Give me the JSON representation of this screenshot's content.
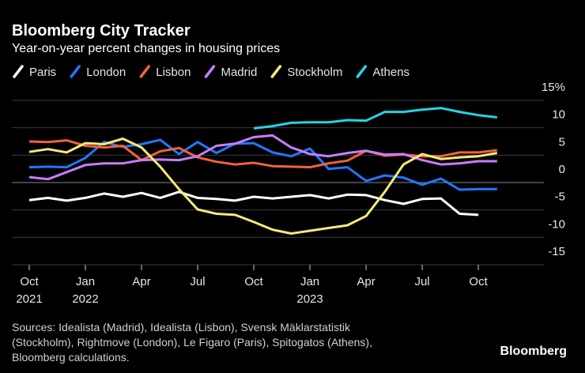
{
  "chart_data": {
    "type": "line",
    "title": "Bloomberg City Tracker",
    "subtitle": "Year-on-year percent changes in housing prices",
    "x": [
      "2021-10",
      "2021-11",
      "2021-12",
      "2022-01",
      "2022-02",
      "2022-03",
      "2022-04",
      "2022-05",
      "2022-06",
      "2022-07",
      "2022-08",
      "2022-09",
      "2022-10",
      "2022-11",
      "2022-12",
      "2023-01",
      "2023-02",
      "2023-03",
      "2023-04",
      "2023-05",
      "2023-06",
      "2023-07",
      "2023-08",
      "2023-09",
      "2023-10",
      "2023-11"
    ],
    "xticks": [
      {
        "value": "2021-10",
        "label": [
          "Oct",
          "2021"
        ]
      },
      {
        "value": "2022-01",
        "label": [
          "Jan",
          "2022"
        ]
      },
      {
        "value": "2022-04",
        "label": [
          "Apr"
        ]
      },
      {
        "value": "2022-07",
        "label": [
          "Jul"
        ]
      },
      {
        "value": "2022-10",
        "label": [
          "Oct"
        ]
      },
      {
        "value": "2023-01",
        "label": [
          "Jan",
          "2023"
        ]
      },
      {
        "value": "2023-04",
        "label": [
          "Apr"
        ]
      },
      {
        "value": "2023-07",
        "label": [
          "Jul"
        ]
      },
      {
        "value": "2023-10",
        "label": [
          "Oct"
        ]
      }
    ],
    "ylim": [
      -15,
      15
    ],
    "yticks": [
      -15,
      -10,
      -5,
      0,
      5,
      10,
      {
        "value": 15,
        "label": "15%"
      }
    ],
    "grid": true,
    "series": [
      {
        "name": "Paris",
        "color": "#ffffff",
        "values": [
          -3.2,
          -2.8,
          -3.3,
          -2.8,
          -2.0,
          -2.6,
          -1.9,
          -2.8,
          -1.7,
          -2.8,
          -3.0,
          -3.3,
          -2.6,
          -2.9,
          -2.6,
          -2.3,
          -2.9,
          -2.2,
          -2.3,
          -3.2,
          -3.9,
          -3.0,
          -2.9,
          -5.7,
          -5.9,
          null
        ]
      },
      {
        "name": "London",
        "color": "#1f78ff",
        "values": [
          2.8,
          2.9,
          2.8,
          4.5,
          7.4,
          6.5,
          7.0,
          7.8,
          5.2,
          7.4,
          5.4,
          7.1,
          7.2,
          5.5,
          4.8,
          6.2,
          2.5,
          2.8,
          0.3,
          1.3,
          0.9,
          -0.4,
          0.7,
          -1.3,
          -1.2,
          -1.2
        ]
      },
      {
        "name": "Lisbon",
        "color": "#f2613a",
        "values": [
          7.5,
          7.4,
          7.7,
          6.7,
          6.4,
          6.7,
          4.1,
          5.7,
          6.3,
          4.6,
          3.8,
          3.3,
          3.6,
          3.0,
          2.9,
          2.8,
          3.5,
          4.0,
          5.8,
          4.9,
          5.1,
          4.8,
          4.8,
          5.5,
          5.5,
          5.9
        ]
      },
      {
        "name": "Madrid",
        "color": "#c77dff",
        "values": [
          1.0,
          0.6,
          1.9,
          3.2,
          3.5,
          3.5,
          4.1,
          4.2,
          4.1,
          4.8,
          6.7,
          7.1,
          8.3,
          8.6,
          6.4,
          5.2,
          4.8,
          5.4,
          5.8,
          5.1,
          5.2,
          4.1,
          3.3,
          3.5,
          3.9,
          3.9
        ]
      },
      {
        "name": "Stockholm",
        "color": "#f5e97a",
        "values": [
          5.6,
          6.1,
          5.5,
          7.2,
          7.0,
          8.0,
          6.4,
          2.9,
          -1.2,
          -4.9,
          -5.7,
          -5.9,
          -7.2,
          -8.6,
          -9.3,
          -8.8,
          -8.3,
          -7.8,
          -6.1,
          -1.7,
          3.3,
          5.2,
          4.3,
          4.6,
          4.8,
          5.4
        ]
      },
      {
        "name": "Athens",
        "color": "#25d3e6",
        "values": [
          null,
          null,
          null,
          null,
          null,
          null,
          null,
          null,
          null,
          null,
          null,
          null,
          9.9,
          10.3,
          10.9,
          11.0,
          11.0,
          11.4,
          11.3,
          12.9,
          12.9,
          13.3,
          13.6,
          12.9,
          12.3,
          11.9
        ]
      }
    ],
    "source_lines": [
      "Sources: Idealista (Madrid), Idealista (Lisbon), Svensk Mäklarstatistik",
      "(Stockholm), Rightmove (London), Le Figaro (Paris), Spitogatos (Athens),",
      "Bloomberg calculations."
    ],
    "brand": "Bloomberg"
  }
}
